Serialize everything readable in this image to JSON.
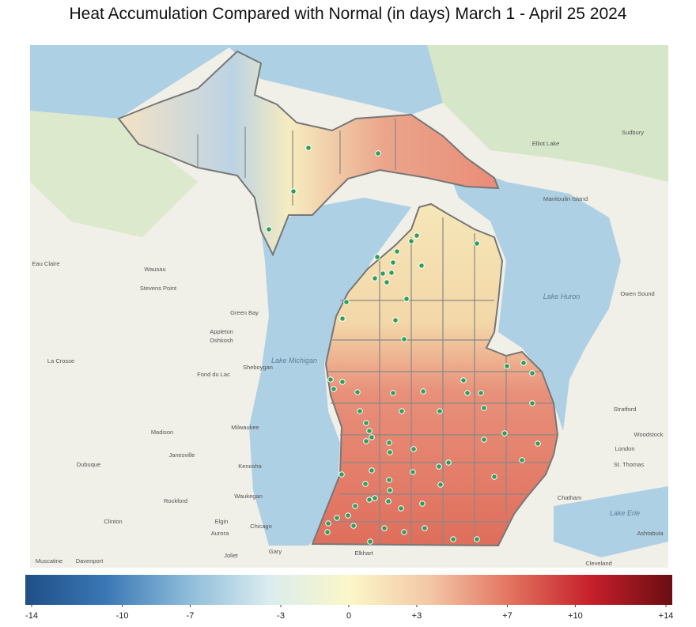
{
  "title": "Heat Accumulation Compared with Normal (in days) March 1 - April 25 2024",
  "map": {
    "lakes": [
      "Lake Michigan",
      "Lake Huron",
      "Lake Erie"
    ],
    "places": [
      "Madison",
      "Milwaukee",
      "Chicago",
      "Sheboygan",
      "Green Bay",
      "Appleton",
      "Oshkosh",
      "Fond du Lac",
      "Wausau",
      "Stevens Point",
      "Eau Claire",
      "La Crosse",
      "Janesville",
      "Kenosha",
      "Waukegan",
      "Rockford",
      "Dubuque",
      "Clinton",
      "Elgin",
      "Aurora",
      "Joliet",
      "Gary",
      "Elkhart",
      "Davenport",
      "Muscatine",
      "Elliot Lake",
      "Sudbury",
      "Manitoulin Island",
      "Owen Sound",
      "Stratford",
      "Woodstock",
      "London",
      "St. Thomas",
      "Chatham",
      "Ashtabula",
      "Cleveland"
    ]
  },
  "colorbar": {
    "range": [
      -14,
      14
    ],
    "colors": [
      "#1f4e86",
      "#3a78b5",
      "#8dbbd9",
      "#d9ecef",
      "#fbf7c8",
      "#f3c7a6",
      "#e2735f",
      "#c61f2b",
      "#6a0d12"
    ],
    "ticks": [
      -14,
      -10,
      -7,
      -3,
      0,
      {
        "value": 3,
        "label": "+3"
      },
      {
        "value": 7,
        "label": "+7"
      },
      {
        "value": 10,
        "label": "+10"
      },
      {
        "value": 14,
        "label": "+14"
      }
    ]
  }
}
